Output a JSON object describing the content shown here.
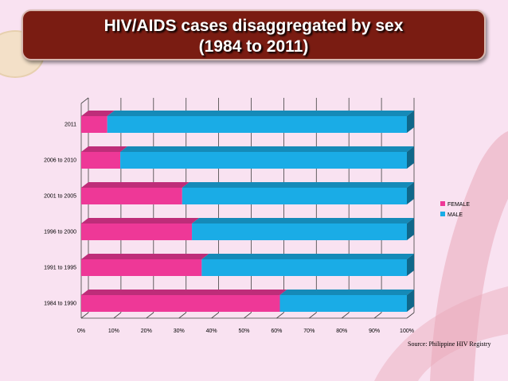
{
  "title": {
    "line1": "HIV/AIDS cases disaggregated by sex",
    "line2": "(1984 to 2011)"
  },
  "source_note": "Source: Philippine HIV Registry",
  "chart_data": {
    "type": "bar",
    "orientation": "horizontal",
    "stacked": true,
    "percent_stacked": true,
    "three_d": true,
    "categories": [
      "2011",
      "2006 to 2010",
      "2001 to 2005",
      "1996 to 2000",
      "1991 to 1995",
      "1984 to 1990"
    ],
    "series": [
      {
        "name": "FEMALE",
        "color": "#ee3897",
        "values": [
          8,
          12,
          31,
          34,
          37,
          61
        ]
      },
      {
        "name": "MALE",
        "color": "#1aace6",
        "values": [
          92,
          88,
          69,
          66,
          63,
          39
        ]
      }
    ],
    "x_ticks": [
      "0%",
      "10%",
      "20%",
      "30%",
      "40%",
      "50%",
      "60%",
      "70%",
      "80%",
      "90%",
      "100%"
    ],
    "xlim": [
      0,
      100
    ],
    "grid": true,
    "legend": "right"
  }
}
